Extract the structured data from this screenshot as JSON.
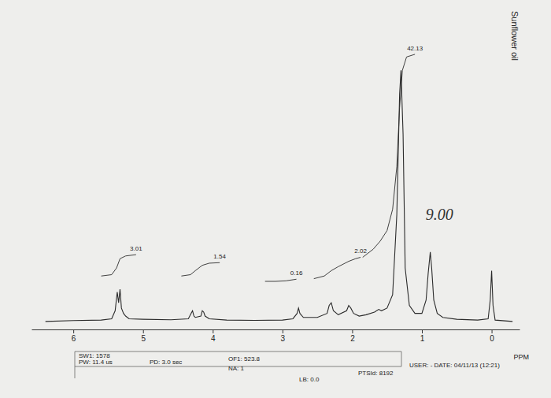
{
  "chart_data": {
    "type": "line",
    "title": "Sunflower oil",
    "x_label": "PPM",
    "color": "#2b2b2b",
    "xlim": [
      6.6,
      -0.4
    ],
    "xticks": [
      6,
      5,
      4,
      3,
      2,
      1,
      0
    ],
    "ylim": [
      -3,
      110
    ],
    "tick_labels": "x",
    "x": [
      6.4,
      6.0,
      5.6,
      5.45,
      5.4,
      5.37,
      5.35,
      5.33,
      5.31,
      5.28,
      5.25,
      5.2,
      5.0,
      4.6,
      4.35,
      4.32,
      4.29,
      4.27,
      4.25,
      4.17,
      4.15,
      4.13,
      4.11,
      4.05,
      3.8,
      3.4,
      3.0,
      2.85,
      2.79,
      2.77,
      2.75,
      2.7,
      2.5,
      2.36,
      2.33,
      2.3,
      2.27,
      2.2,
      2.08,
      2.05,
      2.02,
      1.98,
      1.9,
      1.8,
      1.68,
      1.62,
      1.58,
      1.5,
      1.42,
      1.36,
      1.32,
      1.3,
      1.27,
      1.24,
      1.18,
      1.1,
      1.0,
      0.94,
      0.91,
      0.88,
      0.86,
      0.83,
      0.78,
      0.7,
      0.5,
      0.2,
      0.05,
      0.02,
      0.0,
      -0.02,
      -0.05,
      -0.3
    ],
    "values": [
      0,
      0.3,
      0.5,
      1,
      4,
      11,
      7,
      12,
      5,
      3,
      2,
      1,
      0.8,
      0.6,
      1,
      2.5,
      4,
      2,
      1.5,
      2,
      4,
      3.5,
      2,
      1,
      0.5,
      0.4,
      0.5,
      1,
      3,
      5,
      3,
      1.5,
      1.5,
      3,
      6,
      7,
      4,
      2.5,
      4,
      6,
      5,
      3,
      2,
      2.5,
      3.5,
      4.5,
      4,
      5,
      10,
      40,
      85,
      94,
      70,
      20,
      6,
      3,
      3,
      8,
      18,
      26,
      20,
      8,
      3,
      1.5,
      0.8,
      0.5,
      1,
      8,
      19,
      6,
      0.5,
      0
    ],
    "integrals": [
      {
        "label": "3.01",
        "x": [
          5.6,
          5.45,
          5.38,
          5.33,
          5.25,
          5.1
        ],
        "values": [
          17,
          17.5,
          20,
          23.5,
          24.5,
          25
        ]
      },
      {
        "label": "1.54",
        "x": [
          4.45,
          4.32,
          4.25,
          4.15,
          4.05,
          3.9
        ],
        "values": [
          17,
          17.5,
          19,
          21,
          21.8,
          22
        ]
      },
      {
        "label": "0.16",
        "x": [
          3.25,
          3.1,
          2.95,
          2.85,
          2.8
        ],
        "values": [
          15,
          15,
          15.2,
          15.6,
          15.8
        ]
      },
      {
        "label": "2.02",
        "x": [
          2.55,
          2.4,
          2.3,
          2.2,
          2.05,
          1.95,
          1.88
        ],
        "values": [
          16,
          17,
          19,
          20.5,
          22.5,
          23.5,
          24
        ]
      },
      {
        "label": "42.13",
        "x": [
          1.85,
          1.7,
          1.6,
          1.5,
          1.42,
          1.36,
          1.32,
          1.28,
          1.22,
          1.1
        ],
        "values": [
          24,
          27,
          30,
          34,
          42,
          58,
          80,
          94,
          99,
          100
        ]
      }
    ],
    "annotations": [
      {
        "text": "9.00",
        "x": 0.75,
        "y": 38
      }
    ],
    "footer": [
      "SW1: 1578",
      "PW: 11.4 us",
      "PD: 3.0 sec",
      "OF1: 523.8",
      "NA: 1",
      "LB: 0.0",
      "PTSId: 8192",
      "USER: - DATE: 04/11/13 (12:21)"
    ]
  }
}
